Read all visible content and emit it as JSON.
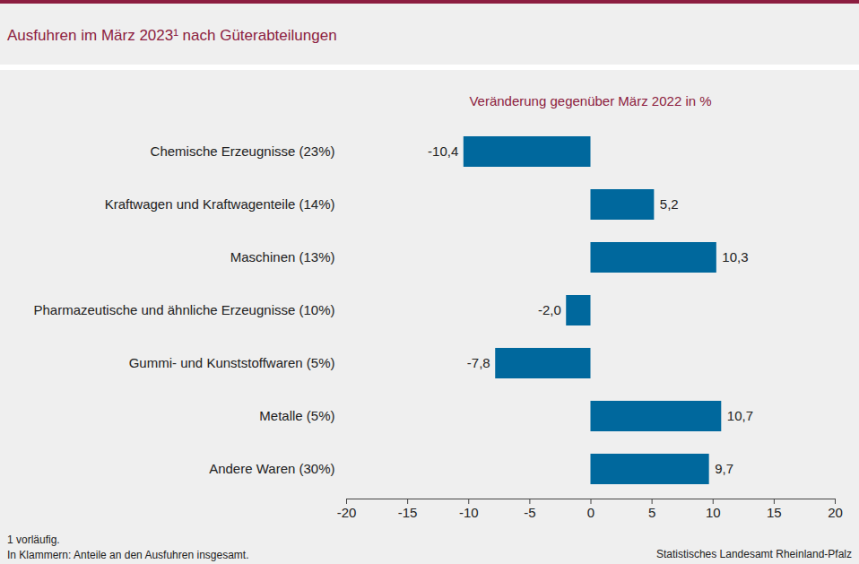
{
  "chart_data": {
    "type": "bar",
    "orientation": "horizontal",
    "title": "Ausfuhren im März 2023¹ nach Güterabteilungen",
    "subtitle": "Veränderung gegenüber März 2022 in %",
    "categories": [
      "Chemische Erzeugnisse (23%)",
      "Kraftwagen und Kraftwagenteile (14%)",
      "Maschinen (13%)",
      "Pharmazeutische und ähnliche Erzeugnisse (10%)",
      "Gummi- und Kunststoffwaren (5%)",
      "Metalle (5%)",
      "Andere Waren (30%)"
    ],
    "values": [
      -10.4,
      5.2,
      10.3,
      -2.0,
      -7.8,
      10.7,
      9.7
    ],
    "value_labels": [
      "-10,4",
      "5,2",
      "10,3",
      "-2,0",
      "-7,8",
      "10,7",
      "9,7"
    ],
    "color": "#00689d",
    "xlim": [
      -20,
      20
    ],
    "xticks": [
      -20,
      -15,
      -10,
      -5,
      0,
      5,
      10,
      15,
      20
    ],
    "grid": false,
    "data_labels": true,
    "notes": [
      "1 vorläufig.",
      "In Klammern: Anteile an den Ausfuhren insgesamt."
    ],
    "source": "Statistisches Landesamt Rheinland-Pfalz"
  }
}
